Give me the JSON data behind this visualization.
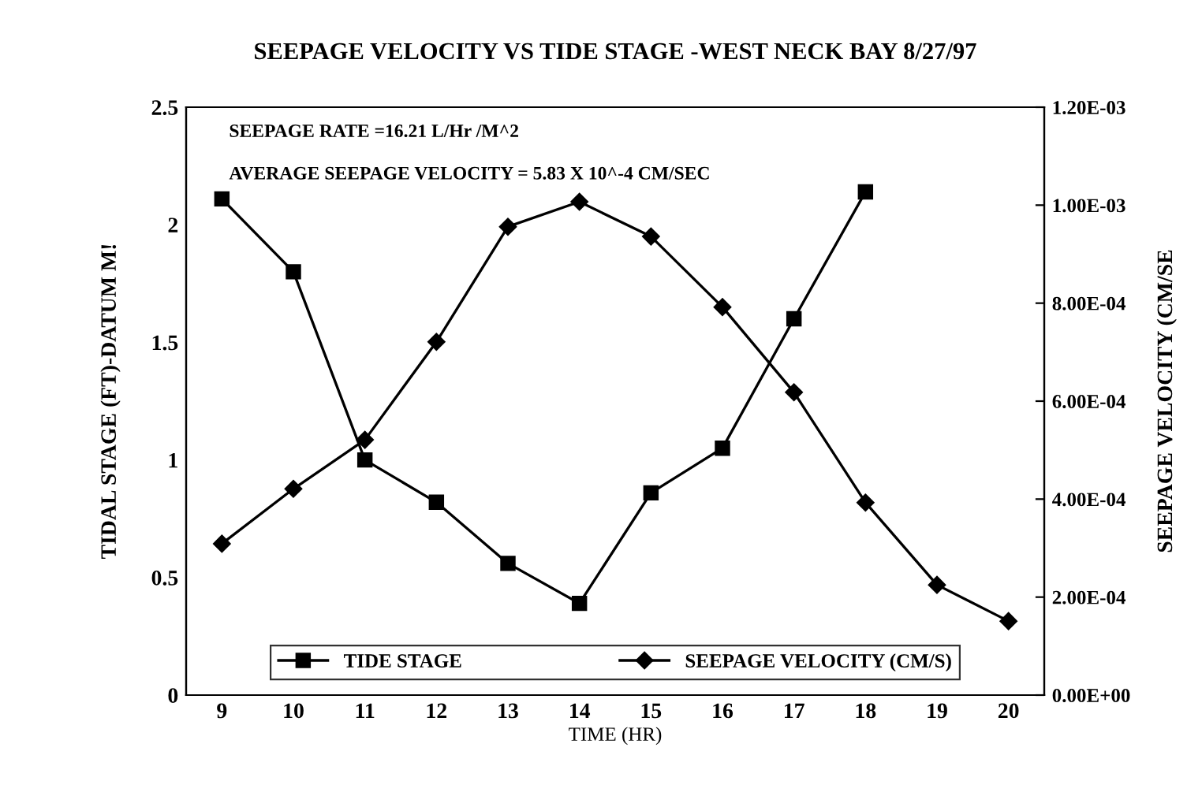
{
  "chart_data": {
    "type": "line",
    "title": "SEEPAGE VELOCITY VS TIDE STAGE -WEST NECK BAY 8/27/97",
    "xlabel": "TIME (HR)",
    "ylabel": "TIDAL STAGE (FT)-DATUM M!",
    "y2label": "SEEPAGE VELOCITY (CM/SE",
    "categories": [
      "9",
      "10",
      "11",
      "12",
      "13",
      "14",
      "15",
      "16",
      "17",
      "18",
      "19",
      "20"
    ],
    "series": [
      {
        "name": "TIDE STAGE",
        "color": "#000000",
        "marker": "square",
        "values": [
          2.11,
          1.8,
          1.0,
          0.82,
          0.56,
          0.39,
          0.86,
          1.05,
          1.6,
          2.14,
          null,
          null
        ]
      },
      {
        "name": "SEEPAGE VELOCITY (CM/S)",
        "color": "#000000",
        "marker": "diamond",
        "axis": "y2",
        "values": [
          0.000309,
          0.000421,
          0.000521,
          0.000721,
          0.000956,
          0.001007,
          0.000936,
          0.000792,
          0.000618,
          0.000393,
          0.000225,
          0.000151
        ]
      }
    ],
    "ylim": [
      0,
      2.5
    ],
    "yticks": [
      0,
      0.5,
      1,
      1.5,
      2,
      2.5
    ],
    "y2lim": [
      0,
      0.0012
    ],
    "y2ticks": [
      {
        "value": 0,
        "label": "0.00E+00"
      },
      {
        "value": 0.0002,
        "label": "2.00E-04"
      },
      {
        "value": 0.0004,
        "label": "4.00E-04"
      },
      {
        "value": 0.0006,
        "label": "6.00E-04"
      },
      {
        "value": 0.0008,
        "label": "8.00E-04"
      },
      {
        "value": 0.001,
        "label": "1.00E-03"
      },
      {
        "value": 0.0012,
        "label": "1.20E-03"
      }
    ],
    "annotations": [
      "SEEPAGE RATE =16.21 L/Hr /M^2",
      "AVERAGE SEEPAGE VELOCITY = 5.83 X 10^-4 CM/SEC"
    ],
    "legend": "bottom",
    "grid": false,
    "line_style": "solid"
  }
}
